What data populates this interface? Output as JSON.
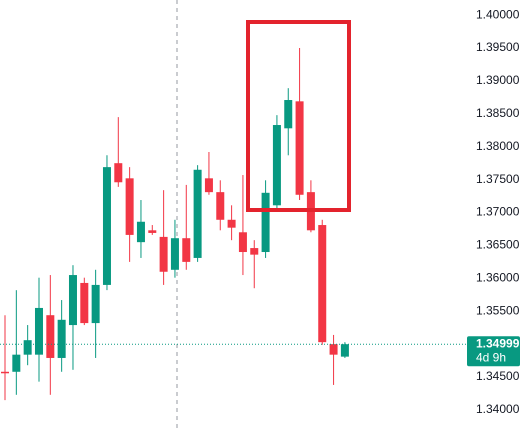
{
  "chart_data": {
    "type": "candlestick",
    "open": [
      1.3458,
      1.3458,
      1.3484,
      1.3484,
      1.3544,
      1.3479,
      1.3529,
      1.3593,
      1.3532,
      1.359,
      1.3775,
      1.3752,
      1.3655,
      1.3673,
      1.3663,
      1.3613,
      1.3661,
      1.3631,
      1.3752,
      1.3731,
      1.3689,
      1.367,
      1.3646,
      1.364,
      1.3711,
      1.3828,
      1.3869,
      1.3731,
      1.3681,
      1.35,
      1.3481
    ],
    "high": [
      1.3544,
      1.3582,
      1.3529,
      1.3601,
      1.3605,
      1.3567,
      1.362,
      1.3601,
      1.3613,
      1.3787,
      1.3845,
      1.3769,
      1.3719,
      1.3681,
      1.3734,
      1.3689,
      1.3742,
      1.3772,
      1.3792,
      1.3749,
      1.3711,
      1.3757,
      1.3658,
      1.3749,
      1.3848,
      1.3889,
      1.395,
      1.3749,
      1.3689,
      1.3514,
      1.3503
    ],
    "low": [
      1.3415,
      1.3423,
      1.3468,
      1.3443,
      1.3423,
      1.3458,
      1.3461,
      1.3529,
      1.3479,
      1.3582,
      1.3739,
      1.3625,
      1.3631,
      1.3666,
      1.359,
      1.3601,
      1.3613,
      1.3625,
      1.3727,
      1.3673,
      1.3658,
      1.3605,
      1.3585,
      1.3631,
      1.3704,
      1.3787,
      1.3719,
      1.367,
      1.3499,
      1.3438,
      1.3479
    ],
    "close": [
      1.3456,
      1.3484,
      1.3506,
      1.3555,
      1.3479,
      1.3537,
      1.3605,
      1.3532,
      1.359,
      1.3769,
      1.3746,
      1.3666,
      1.3686,
      1.3669,
      1.361,
      1.3661,
      1.3625,
      1.3765,
      1.3731,
      1.3689,
      1.3677,
      1.364,
      1.3636,
      1.373,
      1.3833,
      1.3871,
      1.3727,
      1.3673,
      1.3503,
      1.3484,
      1.34999
    ],
    "up_color": "#089981",
    "down_color": "#f23645",
    "ylim": [
      1.3368,
      1.4023
    ],
    "yticks": [
      {
        "value": 1.34,
        "label": "1.34000"
      },
      {
        "value": 1.345,
        "label": "1.34500"
      },
      {
        "value": 1.35,
        "label": "1.35000"
      },
      {
        "value": 1.355,
        "label": "1.35500"
      },
      {
        "value": 1.36,
        "label": "1.36000"
      },
      {
        "value": 1.365,
        "label": "1.36500"
      },
      {
        "value": 1.37,
        "label": "1.37000"
      },
      {
        "value": 1.375,
        "label": "1.37500"
      },
      {
        "value": 1.38,
        "label": "1.38000"
      },
      {
        "value": 1.385,
        "label": "1.38500"
      },
      {
        "value": 1.39,
        "label": "1.39000"
      },
      {
        "value": 1.395,
        "label": "1.39500"
      },
      {
        "value": 1.4,
        "label": "1.40000"
      }
    ],
    "last_price": 1.34999,
    "countdown": "4d 9h"
  }
}
